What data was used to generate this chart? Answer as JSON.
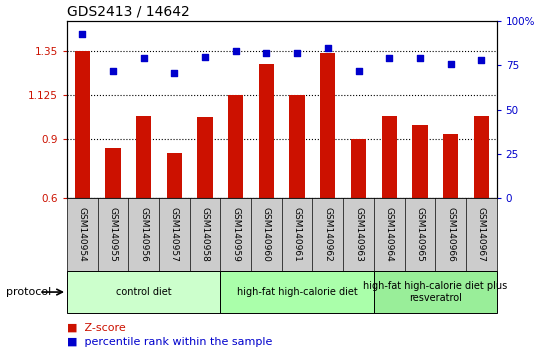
{
  "title": "GDS2413 / 14642",
  "samples": [
    "GSM140954",
    "GSM140955",
    "GSM140956",
    "GSM140957",
    "GSM140958",
    "GSM140959",
    "GSM140960",
    "GSM140961",
    "GSM140962",
    "GSM140963",
    "GSM140964",
    "GSM140965",
    "GSM140966",
    "GSM140967"
  ],
  "zscore": [
    1.35,
    0.855,
    1.02,
    0.83,
    1.015,
    1.125,
    1.285,
    1.125,
    1.34,
    0.9,
    1.02,
    0.97,
    0.925,
    1.02
  ],
  "percentile": [
    93,
    72,
    79,
    71,
    80,
    83,
    82,
    82,
    85,
    72,
    79,
    79,
    76,
    78
  ],
  "bar_color": "#cc1100",
  "dot_color": "#0000cc",
  "ylim_left": [
    0.6,
    1.5
  ],
  "ylim_right": [
    0,
    100
  ],
  "yticks_left": [
    0.6,
    0.9,
    1.125,
    1.35
  ],
  "ytick_labels_left": [
    "0.6",
    "0.9",
    "1.125",
    "1.35"
  ],
  "yticks_right": [
    0,
    25,
    50,
    75,
    100
  ],
  "ytick_labels_right": [
    "0",
    "25",
    "50",
    "75",
    "100%"
  ],
  "groups": [
    {
      "label": "control diet",
      "start": 0,
      "end": 4,
      "color": "#ccffcc"
    },
    {
      "label": "high-fat high-calorie diet",
      "start": 5,
      "end": 9,
      "color": "#aaffaa"
    },
    {
      "label": "high-fat high-calorie diet plus\nresveratrol",
      "start": 10,
      "end": 13,
      "color": "#99ee99"
    }
  ],
  "protocol_label": "protocol",
  "legend_zscore": "Z-score",
  "legend_percentile": "percentile rank within the sample",
  "xticklabel_bg": "#cccccc",
  "title_fontsize": 10,
  "tick_fontsize": 7.5,
  "bar_width": 0.5
}
